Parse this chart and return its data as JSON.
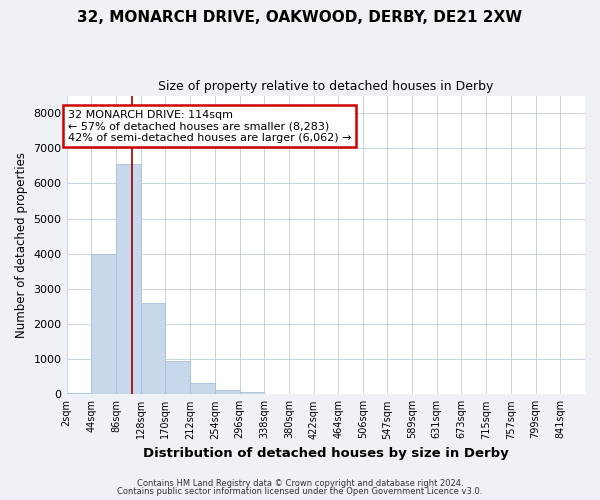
{
  "title": "32, MONARCH DRIVE, OAKWOOD, DERBY, DE21 2XW",
  "subtitle": "Size of property relative to detached houses in Derby",
  "xlabel": "Distribution of detached houses by size in Derby",
  "ylabel": "Number of detached properties",
  "bin_edges": [
    2,
    44,
    86,
    128,
    170,
    212,
    254,
    296,
    338,
    380,
    422,
    464,
    506,
    547,
    589,
    631,
    673,
    715,
    757,
    799,
    841
  ],
  "bin_labels": [
    "2sqm",
    "44sqm",
    "86sqm",
    "128sqm",
    "170sqm",
    "212sqm",
    "254sqm",
    "296sqm",
    "338sqm",
    "380sqm",
    "422sqm",
    "464sqm",
    "506sqm",
    "547sqm",
    "589sqm",
    "631sqm",
    "673sqm",
    "715sqm",
    "757sqm",
    "799sqm",
    "841sqm"
  ],
  "counts": [
    50,
    4000,
    6550,
    2600,
    950,
    320,
    130,
    60,
    0,
    0,
    0,
    0,
    0,
    0,
    0,
    0,
    0,
    0,
    0,
    0
  ],
  "bar_color": "#c8d8ec",
  "bar_edgecolor": "#a8c0d8",
  "property_line_x": 114,
  "property_line_color": "#990000",
  "ylim": [
    0,
    8500
  ],
  "yticks": [
    0,
    1000,
    2000,
    3000,
    4000,
    5000,
    6000,
    7000,
    8000
  ],
  "annotation_line1": "32 MONARCH DRIVE: 114sqm",
  "annotation_line2": "← 57% of detached houses are smaller (8,283)",
  "annotation_line3": "42% of semi-detached houses are larger (6,062) →",
  "annotation_box_facecolor": "#ffffff",
  "annotation_box_edgecolor": "#cc0000",
  "footer1": "Contains HM Land Registry data © Crown copyright and database right 2024.",
  "footer2": "Contains public sector information licensed under the Open Government Licence v3.0.",
  "background_color": "#eef2f7",
  "plot_background_color": "#ffffff",
  "grid_color": "#c8d4e0",
  "title_fontsize": 11,
  "subtitle_fontsize": 9
}
